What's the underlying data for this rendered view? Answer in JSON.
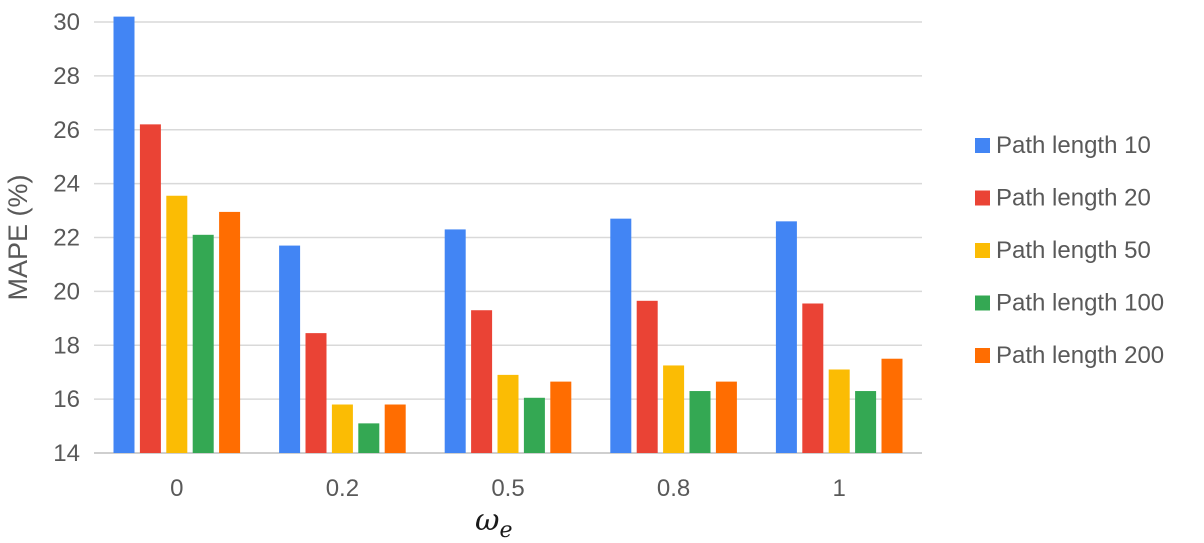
{
  "chart_data": {
    "type": "bar",
    "categories": [
      "0",
      "0.2",
      "0.5",
      "0.8",
      "1"
    ],
    "series": [
      {
        "name": "Path length 10",
        "color": "#4285F4",
        "values": [
          30.2,
          21.7,
          22.3,
          22.7,
          22.6
        ]
      },
      {
        "name": "Path length 20",
        "color": "#EA4335",
        "values": [
          26.2,
          18.45,
          19.3,
          19.65,
          19.55
        ]
      },
      {
        "name": "Path length 50",
        "color": "#FBBC04",
        "values": [
          23.55,
          15.8,
          16.9,
          17.25,
          17.1
        ]
      },
      {
        "name": "Path length 100",
        "color": "#34A853",
        "values": [
          22.1,
          15.1,
          16.05,
          16.3,
          16.3
        ]
      },
      {
        "name": "Path length 200",
        "color": "#FF6D01",
        "values": [
          22.95,
          15.8,
          16.65,
          16.65,
          17.5
        ]
      }
    ],
    "xlabel": {
      "main": "ω",
      "sub": "e"
    },
    "ylabel": "MAPE (%)",
    "ylim": [
      14,
      30
    ],
    "yticks": [
      14,
      16,
      18,
      20,
      22,
      24,
      26,
      28,
      30
    ],
    "grid": true,
    "legend_position": "right"
  }
}
